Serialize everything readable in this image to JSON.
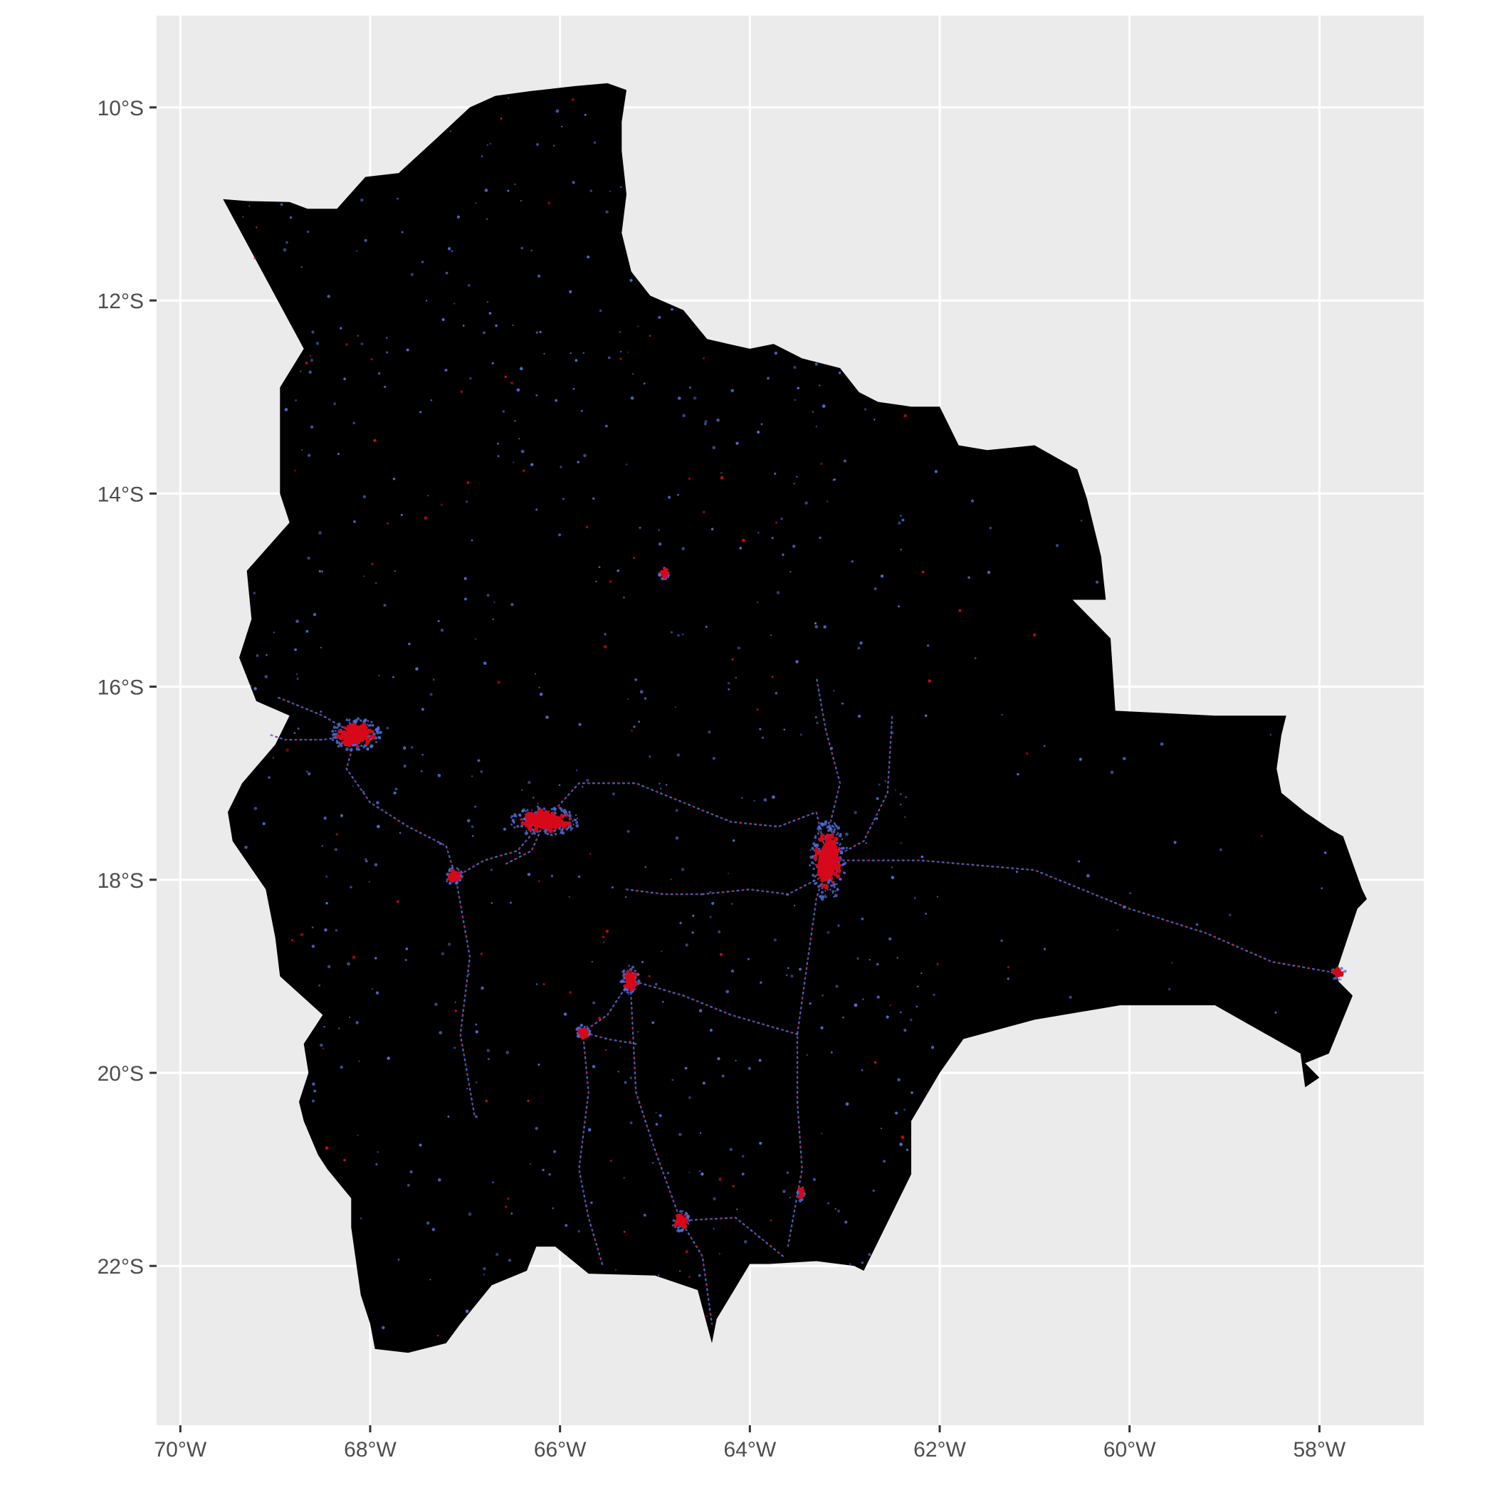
{
  "map": {
    "colors": {
      "panel_background": "#ebebeb",
      "grid_line": "#ffffff",
      "country_fill": "#000000",
      "light_low": "#4f6fd8",
      "light_high": "#d7081a",
      "tick_text": "#4d4d4d",
      "tick_mark": "#333333"
    },
    "lon_range": [
      -70.25,
      -56.9
    ],
    "lat_range": [
      -23.65,
      -9.05
    ],
    "lon_ticks": [
      {
        "value": -70,
        "label": "70°W"
      },
      {
        "value": -68,
        "label": "68°W"
      },
      {
        "value": -66,
        "label": "66°W"
      },
      {
        "value": -64,
        "label": "64°W"
      },
      {
        "value": -62,
        "label": "62°W"
      },
      {
        "value": -60,
        "label": "60°W"
      },
      {
        "value": -58,
        "label": "58°W"
      }
    ],
    "lat_ticks": [
      {
        "value": -10,
        "label": "10°S"
      },
      {
        "value": -12,
        "label": "12°S"
      },
      {
        "value": -14,
        "label": "14°S"
      },
      {
        "value": -16,
        "label": "16°S"
      },
      {
        "value": -18,
        "label": "18°S"
      },
      {
        "value": -20,
        "label": "20°S"
      },
      {
        "value": -22,
        "label": "22°S"
      }
    ],
    "country_outline": [
      [
        -69.55,
        -10.95
      ],
      [
        -69.3,
        -10.97
      ],
      [
        -68.85,
        -10.98
      ],
      [
        -68.66,
        -11.05
      ],
      [
        -68.35,
        -11.05
      ],
      [
        -68.05,
        -10.72
      ],
      [
        -67.7,
        -10.68
      ],
      [
        -67.3,
        -10.32
      ],
      [
        -66.95,
        -10.0
      ],
      [
        -66.68,
        -9.88
      ],
      [
        -66.3,
        -9.83
      ],
      [
        -65.85,
        -9.78
      ],
      [
        -65.5,
        -9.75
      ],
      [
        -65.3,
        -9.82
      ],
      [
        -65.35,
        -10.15
      ],
      [
        -65.35,
        -10.45
      ],
      [
        -65.3,
        -10.9
      ],
      [
        -65.35,
        -11.3
      ],
      [
        -65.25,
        -11.7
      ],
      [
        -65.05,
        -11.95
      ],
      [
        -64.7,
        -12.1
      ],
      [
        -64.45,
        -12.4
      ],
      [
        -64.0,
        -12.5
      ],
      [
        -63.75,
        -12.45
      ],
      [
        -63.45,
        -12.6
      ],
      [
        -63.05,
        -12.7
      ],
      [
        -62.85,
        -12.95
      ],
      [
        -62.65,
        -13.05
      ],
      [
        -62.3,
        -13.1
      ],
      [
        -62.0,
        -13.1
      ],
      [
        -61.8,
        -13.5
      ],
      [
        -61.5,
        -13.55
      ],
      [
        -61.0,
        -13.5
      ],
      [
        -60.55,
        -13.75
      ],
      [
        -60.45,
        -14.05
      ],
      [
        -60.35,
        -14.45
      ],
      [
        -60.3,
        -14.65
      ],
      [
        -60.25,
        -15.1
      ],
      [
        -60.6,
        -15.1
      ],
      [
        -60.2,
        -15.5
      ],
      [
        -60.15,
        -16.25
      ],
      [
        -59.1,
        -16.3
      ],
      [
        -58.35,
        -16.3
      ],
      [
        -58.4,
        -16.5
      ],
      [
        -58.45,
        -16.85
      ],
      [
        -58.4,
        -17.1
      ],
      [
        -58.15,
        -17.3
      ],
      [
        -57.88,
        -17.48
      ],
      [
        -57.75,
        -17.55
      ],
      [
        -57.55,
        -18.1
      ],
      [
        -57.5,
        -18.2
      ],
      [
        -57.6,
        -18.3
      ],
      [
        -57.82,
        -18.95
      ],
      [
        -57.8,
        -19.05
      ],
      [
        -57.65,
        -19.2
      ],
      [
        -57.9,
        -19.8
      ],
      [
        -58.15,
        -19.9
      ],
      [
        -58.0,
        -20.05
      ],
      [
        -58.15,
        -20.15
      ],
      [
        -58.2,
        -19.8
      ],
      [
        -59.1,
        -19.3
      ],
      [
        -60.1,
        -19.3
      ],
      [
        -61.0,
        -19.45
      ],
      [
        -61.75,
        -19.65
      ],
      [
        -62.0,
        -20.0
      ],
      [
        -62.3,
        -20.5
      ],
      [
        -62.3,
        -21.05
      ],
      [
        -62.8,
        -22.05
      ],
      [
        -62.9,
        -22.0
      ],
      [
        -63.3,
        -21.95
      ],
      [
        -63.8,
        -21.98
      ],
      [
        -64.0,
        -21.98
      ],
      [
        -64.35,
        -22.55
      ],
      [
        -64.4,
        -22.8
      ],
      [
        -64.55,
        -22.25
      ],
      [
        -65.0,
        -22.1
      ],
      [
        -65.7,
        -22.08
      ],
      [
        -66.05,
        -21.8
      ],
      [
        -66.25,
        -21.8
      ],
      [
        -66.35,
        -22.05
      ],
      [
        -66.72,
        -22.2
      ],
      [
        -67.05,
        -22.6
      ],
      [
        -67.2,
        -22.8
      ],
      [
        -67.6,
        -22.9
      ],
      [
        -67.95,
        -22.86
      ],
      [
        -68.0,
        -22.6
      ],
      [
        -68.1,
        -22.3
      ],
      [
        -68.2,
        -21.6
      ],
      [
        -68.2,
        -21.3
      ],
      [
        -68.45,
        -21.0
      ],
      [
        -68.55,
        -20.85
      ],
      [
        -68.7,
        -20.5
      ],
      [
        -68.75,
        -20.3
      ],
      [
        -68.65,
        -20.0
      ],
      [
        -68.7,
        -19.7
      ],
      [
        -68.5,
        -19.4
      ],
      [
        -68.95,
        -19.0
      ],
      [
        -69.0,
        -18.6
      ],
      [
        -69.1,
        -18.1
      ],
      [
        -69.45,
        -17.6
      ],
      [
        -69.5,
        -17.3
      ],
      [
        -69.35,
        -17.0
      ],
      [
        -69.0,
        -16.6
      ],
      [
        -68.85,
        -16.3
      ],
      [
        -69.2,
        -16.15
      ],
      [
        -69.38,
        -15.7
      ],
      [
        -69.25,
        -15.3
      ],
      [
        -69.3,
        -14.8
      ],
      [
        -68.85,
        -14.3
      ],
      [
        -68.95,
        -14.0
      ],
      [
        -68.95,
        -13.5
      ],
      [
        -68.95,
        -12.9
      ],
      [
        -68.7,
        -12.5
      ]
    ],
    "cities": [
      {
        "lon": -68.15,
        "lat": -16.5,
        "rx": 0.14,
        "ry": 0.09,
        "rot": -20,
        "cluster": 150
      },
      {
        "lon": -66.16,
        "lat": -17.39,
        "rx": 0.2,
        "ry": 0.08,
        "rot": 5,
        "cluster": 160
      },
      {
        "lon": -63.18,
        "lat": -17.8,
        "rx": 0.1,
        "ry": 0.22,
        "rot": 10,
        "cluster": 190
      },
      {
        "lon": -65.26,
        "lat": -19.04,
        "rx": 0.05,
        "ry": 0.08,
        "rot": 0,
        "cluster": 50
      },
      {
        "lon": -65.76,
        "lat": -19.58,
        "rx": 0.04,
        "ry": 0.04,
        "rot": 0,
        "cluster": 40
      },
      {
        "lon": -64.73,
        "lat": -21.53,
        "rx": 0.05,
        "ry": 0.06,
        "rot": 0,
        "cluster": 45
      },
      {
        "lon": -67.11,
        "lat": -17.97,
        "rx": 0.05,
        "ry": 0.05,
        "rot": 0,
        "cluster": 40
      },
      {
        "lon": -64.9,
        "lat": -14.83,
        "rx": 0.03,
        "ry": 0.03,
        "rot": 0,
        "cluster": 25
      },
      {
        "lon": -57.8,
        "lat": -18.97,
        "rx": 0.04,
        "ry": 0.04,
        "rot": 0,
        "cluster": 20
      },
      {
        "lon": -63.46,
        "lat": -21.25,
        "rx": 0.02,
        "ry": 0.04,
        "rot": 0,
        "cluster": 18
      }
    ],
    "roads": [
      [
        [
          -68.15,
          -16.5
        ],
        [
          -68.5,
          -16.55
        ],
        [
          -68.9,
          -16.55
        ],
        [
          -69.05,
          -16.5
        ]
      ],
      [
        [
          -68.15,
          -16.5
        ],
        [
          -68.5,
          -16.3
        ],
        [
          -69.0,
          -16.1
        ]
      ],
      [
        [
          -68.15,
          -16.5
        ],
        [
          -68.25,
          -16.85
        ],
        [
          -68.0,
          -17.2
        ],
        [
          -67.6,
          -17.45
        ],
        [
          -67.2,
          -17.65
        ],
        [
          -67.1,
          -17.97
        ]
      ],
      [
        [
          -67.1,
          -17.97
        ],
        [
          -66.8,
          -17.8
        ],
        [
          -66.45,
          -17.7
        ],
        [
          -66.2,
          -17.42
        ]
      ],
      [
        [
          -66.16,
          -17.39
        ],
        [
          -65.8,
          -17.0
        ],
        [
          -65.2,
          -17.0
        ],
        [
          -64.7,
          -17.2
        ],
        [
          -64.2,
          -17.4
        ],
        [
          -63.7,
          -17.45
        ],
        [
          -63.3,
          -17.3
        ],
        [
          -63.18,
          -17.8
        ]
      ],
      [
        [
          -63.18,
          -17.8
        ],
        [
          -63.3,
          -18.2
        ],
        [
          -63.4,
          -18.9
        ],
        [
          -63.5,
          -19.6
        ],
        [
          -63.5,
          -20.3
        ],
        [
          -63.45,
          -21.0
        ],
        [
          -63.6,
          -21.8
        ]
      ],
      [
        [
          -63.18,
          -17.8
        ],
        [
          -62.8,
          -17.6
        ],
        [
          -62.55,
          -17.1
        ],
        [
          -62.5,
          -16.3
        ]
      ],
      [
        [
          -63.2,
          -17.6
        ],
        [
          -63.05,
          -17.0
        ],
        [
          -63.2,
          -16.45
        ],
        [
          -63.3,
          -15.9
        ]
      ],
      [
        [
          -67.1,
          -17.97
        ],
        [
          -66.95,
          -18.8
        ],
        [
          -67.05,
          -19.6
        ],
        [
          -66.9,
          -20.45
        ]
      ],
      [
        [
          -65.26,
          -19.04
        ],
        [
          -65.5,
          -19.4
        ],
        [
          -65.76,
          -19.58
        ],
        [
          -65.5,
          -19.65
        ],
        [
          -65.2,
          -19.7
        ]
      ],
      [
        [
          -65.76,
          -19.58
        ],
        [
          -65.7,
          -20.2
        ],
        [
          -65.8,
          -21.0
        ],
        [
          -65.7,
          -21.5
        ],
        [
          -65.55,
          -22.0
        ]
      ],
      [
        [
          -64.73,
          -21.53
        ],
        [
          -65.0,
          -20.8
        ],
        [
          -65.2,
          -20.2
        ],
        [
          -65.26,
          -19.04
        ]
      ],
      [
        [
          -64.73,
          -21.53
        ],
        [
          -64.5,
          -21.9
        ],
        [
          -64.4,
          -22.6
        ]
      ],
      [
        [
          -64.73,
          -21.53
        ],
        [
          -64.15,
          -21.5
        ],
        [
          -63.65,
          -21.9
        ]
      ],
      [
        [
          -63.18,
          -17.8
        ],
        [
          -62.2,
          -17.8
        ],
        [
          -61.0,
          -17.9
        ],
        [
          -60.0,
          -18.3
        ],
        [
          -59.2,
          -18.55
        ],
        [
          -58.5,
          -18.85
        ],
        [
          -57.8,
          -18.97
        ]
      ],
      [
        [
          -66.16,
          -17.39
        ],
        [
          -66.3,
          -17.7
        ],
        [
          -66.6,
          -17.85
        ]
      ],
      [
        [
          -65.26,
          -19.04
        ],
        [
          -64.7,
          -19.2
        ],
        [
          -64.2,
          -19.4
        ],
        [
          -63.5,
          -19.6
        ]
      ],
      [
        [
          -64.5,
          -18.15
        ],
        [
          -64.0,
          -18.1
        ],
        [
          -63.6,
          -18.15
        ],
        [
          -63.2,
          -17.95
        ]
      ],
      [
        [
          -65.3,
          -18.1
        ],
        [
          -64.9,
          -18.15
        ],
        [
          -64.5,
          -18.15
        ]
      ]
    ],
    "scatter_points": 700
  }
}
